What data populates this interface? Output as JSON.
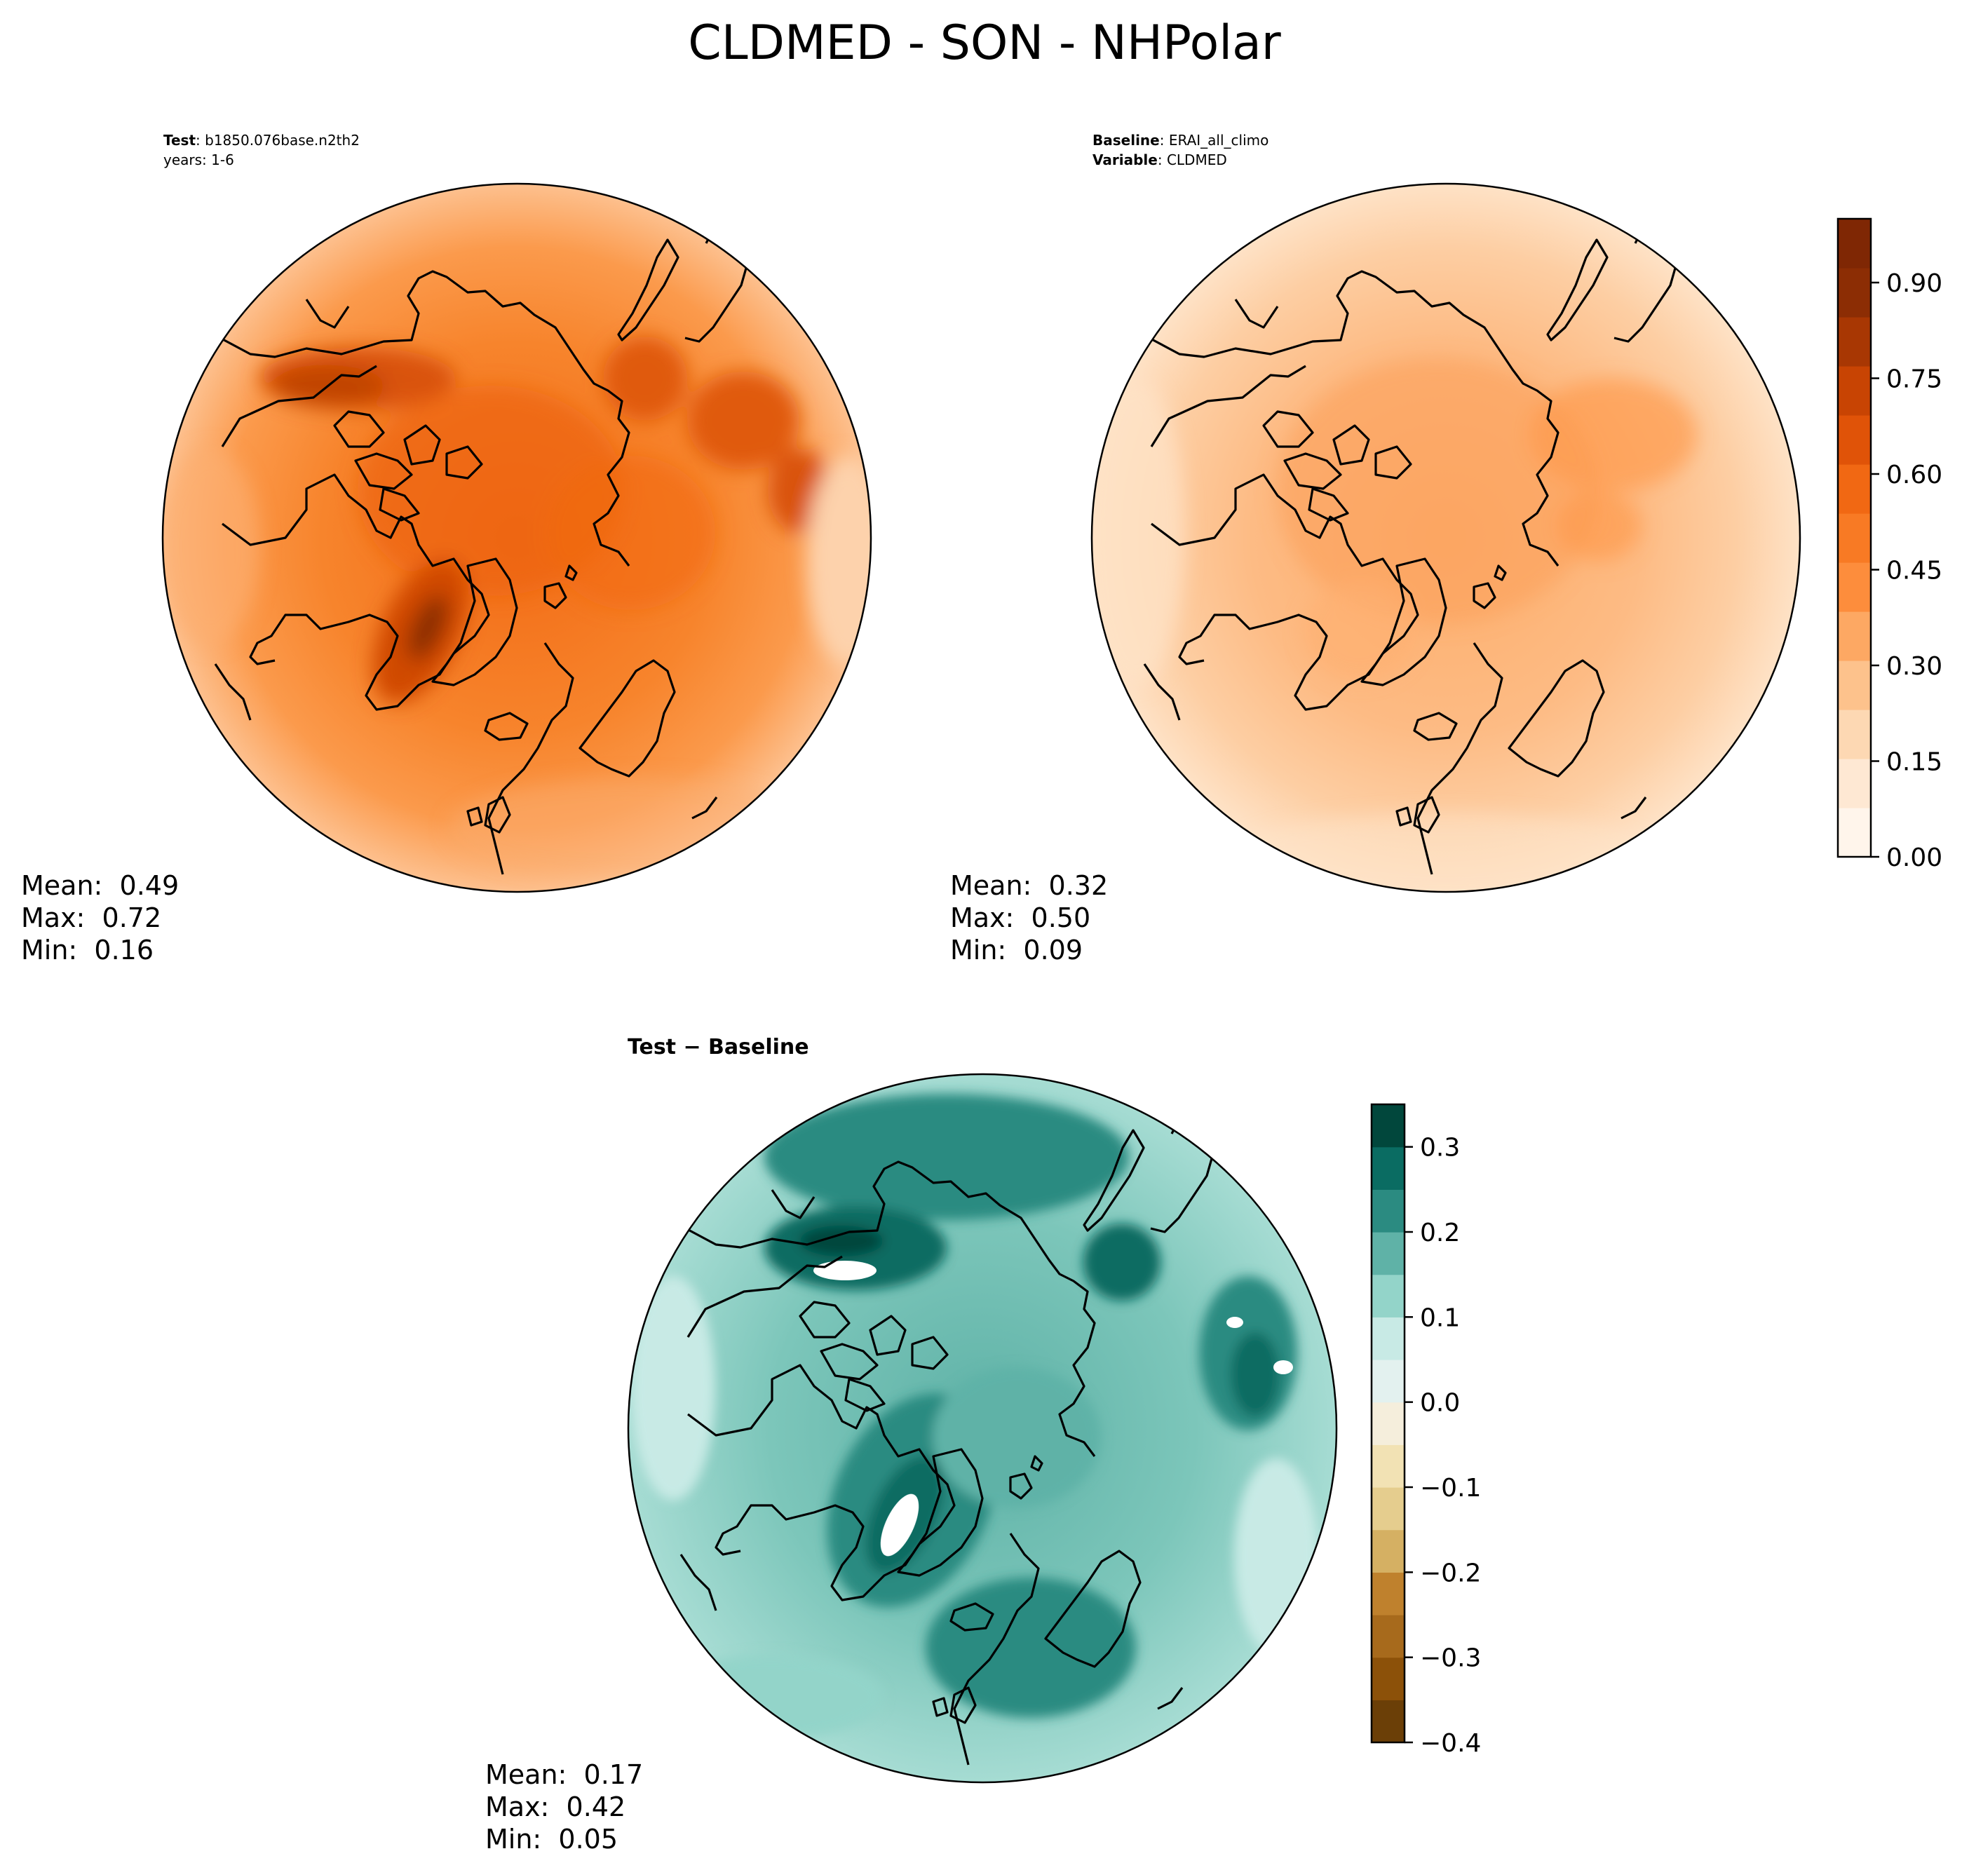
{
  "figure": {
    "title": "CLDMED - SON - NHPolar"
  },
  "panels": {
    "test": {
      "header_bold": "Test",
      "header_value": "b1850.076base.n2th2",
      "header_line2": "years: 1-6",
      "mean_label": "Mean:",
      "mean": "0.49",
      "max_label": "Max:",
      "max": "0.72",
      "min_label": "Min:",
      "min": "0.16"
    },
    "baseline": {
      "header_bold": "Baseline",
      "header_value": "ERAI_all_climo",
      "header2_bold": "Variable",
      "header2_value": "CLDMED",
      "mean_label": "Mean:",
      "mean": "0.32",
      "max_label": "Max:",
      "max": "0.50",
      "min_label": "Min:",
      "min": "0.09"
    },
    "diff": {
      "title": "Test − Baseline",
      "mean_label": "Mean:",
      "mean": "0.17",
      "max_label": "Max:",
      "max": "0.42",
      "min_label": "Min:",
      "min": "0.05"
    }
  },
  "chart_data": [
    {
      "type": "heatmap",
      "projection": "north-polar-stereographic",
      "title": "Test: b1850.076base.n2th2",
      "variable": "CLDMED",
      "colormap": "Oranges",
      "range": [
        0.0,
        1.0
      ],
      "stats": {
        "mean": 0.49,
        "max": 0.72,
        "min": 0.16
      }
    },
    {
      "type": "heatmap",
      "projection": "north-polar-stereographic",
      "title": "Baseline: ERAI_all_climo",
      "variable": "CLDMED",
      "colormap": "Oranges",
      "range": [
        0.0,
        1.0
      ],
      "stats": {
        "mean": 0.32,
        "max": 0.5,
        "min": 0.09
      },
      "colorbar": {
        "ticks": [
          0.0,
          0.15,
          0.3,
          0.45,
          0.6,
          0.75,
          0.9
        ],
        "tick_labels": [
          "0.00",
          "0.15",
          "0.30",
          "0.45",
          "0.60",
          "0.75",
          "0.90"
        ],
        "range": [
          0.0,
          1.0
        ],
        "colors": [
          "#fff5eb",
          "#fee8d3",
          "#fdd8b3",
          "#fdc28c",
          "#fda863",
          "#fd8d3c",
          "#f87a24",
          "#f16813",
          "#e05308",
          "#c84403",
          "#a83703",
          "#8c2d04",
          "#7f2704"
        ]
      }
    },
    {
      "type": "heatmap",
      "projection": "north-polar-stereographic",
      "title": "Test − Baseline",
      "variable": "CLDMED",
      "colormap": "BrBG",
      "range": [
        -0.4,
        0.35
      ],
      "stats": {
        "mean": 0.17,
        "max": 0.42,
        "min": 0.05
      },
      "colorbar": {
        "ticks": [
          -0.4,
          -0.3,
          -0.2,
          -0.1,
          0.0,
          0.1,
          0.2,
          0.3
        ],
        "tick_labels": [
          "−0.4",
          "−0.3",
          "−0.2",
          "−0.1",
          "0.0",
          "0.1",
          "0.2",
          "0.3"
        ],
        "range": [
          -0.4,
          0.35
        ],
        "colors": [
          "#6b3f07",
          "#8c5109",
          "#a76a1c",
          "#bf812d",
          "#d5b063",
          "#e5cd8e",
          "#f2e2b4",
          "#f5eedc",
          "#e3f1ef",
          "#c8eae5",
          "#93d4c9",
          "#5fb2a7",
          "#2b8b81",
          "#0a6c62",
          "#01473c"
        ]
      }
    }
  ]
}
